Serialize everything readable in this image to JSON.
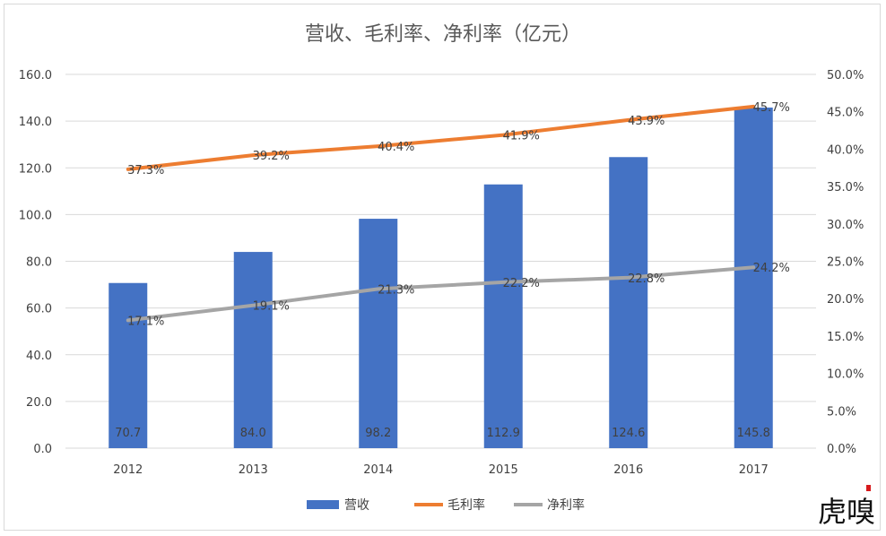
{
  "chart_data": {
    "type": "bar",
    "title": "营收、毛利率、净利率（亿元）",
    "categories": [
      "2012",
      "2013",
      "2014",
      "2015",
      "2016",
      "2017"
    ],
    "left_axis": {
      "min": 0,
      "max": 160,
      "step": 20,
      "tick_labels": [
        "0.0",
        "20.0",
        "40.0",
        "60.0",
        "80.0",
        "100.0",
        "120.0",
        "140.0",
        "160.0"
      ]
    },
    "right_axis": {
      "min": 0,
      "max": 0.5,
      "step": 0.05,
      "tick_labels": [
        "0.0%",
        "5.0%",
        "10.0%",
        "15.0%",
        "20.0%",
        "25.0%",
        "30.0%",
        "35.0%",
        "40.0%",
        "45.0%",
        "50.0%"
      ]
    },
    "grid": true,
    "legend_position": "bottom",
    "series": [
      {
        "name": "营收",
        "type": "bar",
        "axis": "left",
        "color": "#4472C4",
        "values": [
          70.7,
          84.0,
          98.2,
          112.9,
          124.6,
          145.8
        ],
        "labels": [
          "70.7",
          "84.0",
          "98.2",
          "112.9",
          "124.6",
          "145.8"
        ]
      },
      {
        "name": "毛利率",
        "type": "line",
        "axis": "right",
        "color": "#ED7D31",
        "values": [
          0.373,
          0.392,
          0.404,
          0.419,
          0.439,
          0.457
        ],
        "labels": [
          "37.3%",
          "39.2%",
          "40.4%",
          "41.9%",
          "43.9%",
          "45.7%"
        ]
      },
      {
        "name": "净利率",
        "type": "line",
        "axis": "right",
        "color": "#A5A5A5",
        "values": [
          0.171,
          0.191,
          0.213,
          0.222,
          0.228,
          0.242
        ],
        "labels": [
          "17.1%",
          "19.1%",
          "21.3%",
          "22.2%",
          "22.8%",
          "24.2%"
        ]
      }
    ]
  },
  "watermark": {
    "text": "虎嗅",
    "accent": "#D7191C"
  }
}
